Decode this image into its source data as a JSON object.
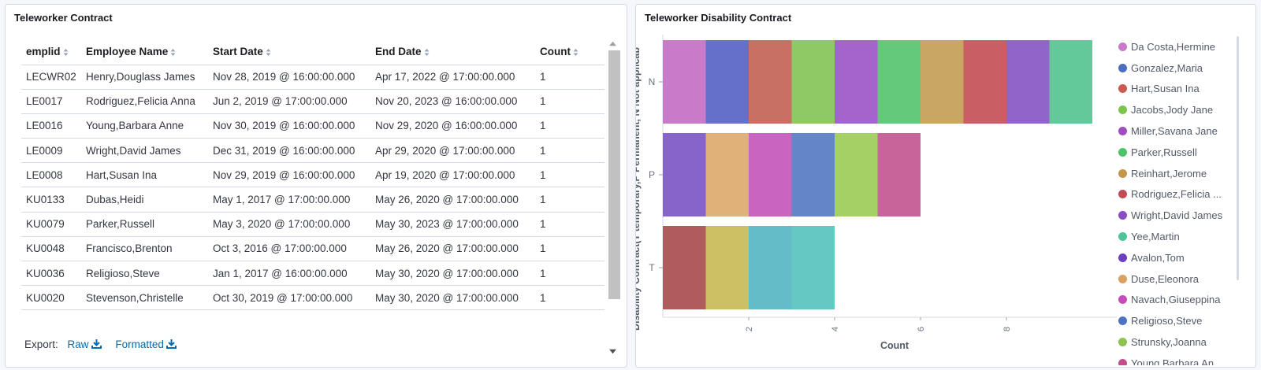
{
  "left_panel": {
    "title": "Teleworker Contract",
    "columns": [
      "emplid",
      "Employee Name",
      "Start Date",
      "End Date",
      "Count"
    ],
    "rows": [
      [
        "LECWR02",
        "Henry,Douglass James",
        "Nov 28, 2019 @ 16:00:00.000",
        "Apr 17, 2022 @ 17:00:00.000",
        "1"
      ],
      [
        "LE0017",
        "Rodriguez,Felicia Anna",
        "Jun 2, 2019 @ 17:00:00.000",
        "Nov 20, 2023 @ 16:00:00.000",
        "1"
      ],
      [
        "LE0016",
        "Young,Barbara Anne",
        "Nov 30, 2019 @ 16:00:00.000",
        "Nov 29, 2020 @ 16:00:00.000",
        "1"
      ],
      [
        "LE0009",
        "Wright,David James",
        "Dec 31, 2019 @ 16:00:00.000",
        "Apr 29, 2020 @ 17:00:00.000",
        "1"
      ],
      [
        "LE0008",
        "Hart,Susan Ina",
        "Nov 29, 2019 @ 16:00:00.000",
        "Apr 19, 2020 @ 17:00:00.000",
        "1"
      ],
      [
        "KU0133",
        "Dubas,Heidi",
        "May 1, 2017 @ 17:00:00.000",
        "May 26, 2020 @ 17:00:00.000",
        "1"
      ],
      [
        "KU0079",
        "Parker,Russell",
        "May 3, 2020 @ 17:00:00.000",
        "May 30, 2023 @ 17:00:00.000",
        "1"
      ],
      [
        "KU0048",
        "Francisco,Brenton",
        "Oct 3, 2016 @ 17:00:00.000",
        "May 26, 2020 @ 17:00:00.000",
        "1"
      ],
      [
        "KU0036",
        "Religioso,Steve",
        "Jan 1, 2017 @ 16:00:00.000",
        "May 30, 2020 @ 17:00:00.000",
        "1"
      ],
      [
        "KU0020",
        "Stevenson,Christelle",
        "Oct 30, 2019 @ 17:00:00.000",
        "May 30, 2020 @ 17:00:00.000",
        "1"
      ]
    ],
    "export_label": "Export:",
    "export_raw": "Raw",
    "export_formatted": "Formatted"
  },
  "right_panel": {
    "title": "Teleworker Disability Contract"
  },
  "chart_data": {
    "type": "bar",
    "orientation": "horizontal",
    "stacked": true,
    "title": "Teleworker Disability Contract",
    "xlabel": "Count",
    "ylabel": "Disability Contract(T temporary,P Permanent, N Not applicab",
    "categories": [
      "N",
      "P",
      "T"
    ],
    "x_ticks": [
      "2",
      "4",
      "6",
      "8"
    ],
    "xlim": [
      0,
      10
    ],
    "segments": [
      {
        "category": "N",
        "name": "Da Costa,Hermine",
        "value": 1,
        "color": "#c97bc9"
      },
      {
        "category": "N",
        "name": "Gonzalez,Maria",
        "value": 1,
        "color": "#6470c9"
      },
      {
        "category": "N",
        "name": "Hart,Susan Ina",
        "value": 1,
        "color": "#c97064"
      },
      {
        "category": "N",
        "name": "Jacobs,Jody Jane",
        "value": 1,
        "color": "#8fc964"
      },
      {
        "category": "N",
        "name": "Miller,Savana Jane",
        "value": 1,
        "color": "#a464c9"
      },
      {
        "category": "N",
        "name": "Parker,Russell",
        "value": 1,
        "color": "#64c97a"
      },
      {
        "category": "N",
        "name": "Reinhart,Jerome",
        "value": 1,
        "color": "#c9a664"
      },
      {
        "category": "N",
        "name": "Rodriguez,Felicia ...",
        "value": 1,
        "color": "#c95f64"
      },
      {
        "category": "N",
        "name": "Wright,David James",
        "value": 1,
        "color": "#9164c9"
      },
      {
        "category": "N",
        "name": "Yee,Martin",
        "value": 1,
        "color": "#64c99a"
      },
      {
        "category": "P",
        "name": "Avalon,Tom",
        "value": 1,
        "color": "#8764c9"
      },
      {
        "category": "P",
        "name": "Duse,Eleonora",
        "value": 1,
        "color": "#e0b27a"
      },
      {
        "category": "P",
        "name": "Navach,Giuseppina",
        "value": 1,
        "color": "#c964c0"
      },
      {
        "category": "P",
        "name": "Religioso,Steve",
        "value": 1,
        "color": "#6486c9"
      },
      {
        "category": "P",
        "name": "Strunsky,Joanna",
        "value": 1,
        "color": "#a5d066"
      },
      {
        "category": "P",
        "name": "Young,Barbara An...",
        "value": 1,
        "color": "#c9649a"
      },
      {
        "category": "T",
        "name": "",
        "value": 1,
        "color": "#b05c5c"
      },
      {
        "category": "T",
        "name": "",
        "value": 1,
        "color": "#cbc064"
      },
      {
        "category": "T",
        "name": "",
        "value": 1,
        "color": "#64bcc9"
      },
      {
        "category": "T",
        "name": "",
        "value": 1,
        "color": "#64c9c0"
      }
    ],
    "legend": [
      {
        "name": "Da Costa,Hermine",
        "color": "#c97bc9"
      },
      {
        "name": "Gonzalez,Maria",
        "color": "#4d6cc4"
      },
      {
        "name": "Hart,Susan Ina",
        "color": "#c95a4d"
      },
      {
        "name": "Jacobs,Jody Jane",
        "color": "#7dc44d"
      },
      {
        "name": "Miller,Savana Jane",
        "color": "#a04dc4"
      },
      {
        "name": "Parker,Russell",
        "color": "#4dc468"
      },
      {
        "name": "Reinhart,Jerome",
        "color": "#c4964d"
      },
      {
        "name": "Rodriguez,Felicia ...",
        "color": "#c44d55"
      },
      {
        "name": "Wright,David James",
        "color": "#8a4dc4"
      },
      {
        "name": "Yee,Martin",
        "color": "#4dc49a"
      },
      {
        "name": "Avalon,Tom",
        "color": "#6a3fc0"
      },
      {
        "name": "Duse,Eleonora",
        "color": "#d9a05f"
      },
      {
        "name": "Navach,Giuseppina",
        "color": "#c44dba"
      },
      {
        "name": "Religioso,Steve",
        "color": "#4d72c4"
      },
      {
        "name": "Strunsky,Joanna",
        "color": "#8cc44d"
      },
      {
        "name": "Young,Barbara An...",
        "color": "#c44d8a"
      }
    ]
  }
}
